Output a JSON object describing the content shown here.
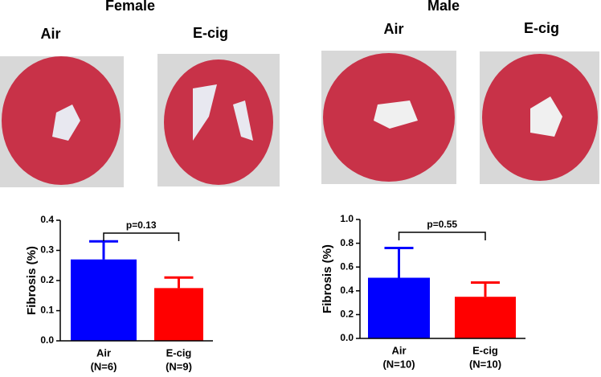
{
  "panels": [
    {
      "title": "Female",
      "image_labels": [
        "Air",
        "E-cig"
      ]
    },
    {
      "title": "Male",
      "image_labels": [
        "Air",
        "E-cig"
      ]
    }
  ],
  "chart_data": [
    {
      "type": "bar",
      "ylabel": "Fibrosis (%)",
      "categories": [
        "Air",
        "E-cig"
      ],
      "group_sizes": [
        "(N=6)",
        "(N=9)"
      ],
      "values": [
        0.27,
        0.175
      ],
      "errors": [
        0.06,
        0.035
      ],
      "colors": [
        "#0000ff",
        "#ff0000"
      ],
      "ylim": [
        0,
        0.4
      ],
      "yticks": [
        {
          "value": 0,
          "label": "0.0"
        },
        0.1,
        0.2,
        0.3,
        0.4
      ],
      "annotation": "p=0.13"
    },
    {
      "type": "bar",
      "ylabel": "Fibrosis (%)",
      "categories": [
        "Air",
        "E-cig"
      ],
      "group_sizes": [
        "(N=10)",
        "(N=10)"
      ],
      "values": [
        0.51,
        0.35
      ],
      "errors": [
        0.25,
        0.12
      ],
      "colors": [
        "#0000ff",
        "#ff0000"
      ],
      "ylim": [
        0,
        1.0
      ],
      "yticks": [
        {
          "value": 0,
          "label": "0.0"
        },
        0.2,
        0.4,
        0.6,
        0.8,
        {
          "value": 1.0,
          "label": "1.0"
        }
      ],
      "annotation": "p=0.55"
    }
  ]
}
